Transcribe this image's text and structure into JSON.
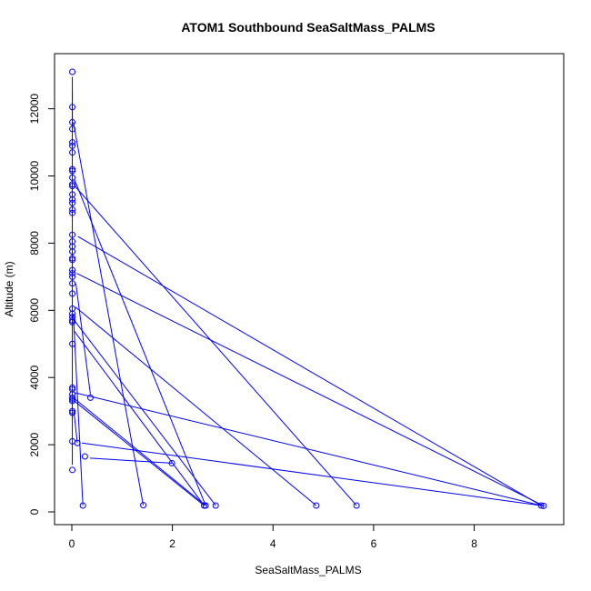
{
  "chart_data": {
    "type": "line",
    "title": "ATOM1 Southbound SeaSaltMass_PALMS",
    "xlabel": "SeaSaltMass_PALMS",
    "ylabel": "Altitude (m)",
    "xlim": [
      0,
      9.4
    ],
    "ylim": [
      0,
      13100
    ],
    "xticks": [
      0,
      2,
      4,
      6,
      8
    ],
    "yticks": [
      0,
      2000,
      4000,
      6000,
      8000,
      10000,
      12000
    ],
    "grid": false,
    "series_color": "#0000ff",
    "series": [
      {
        "points": [
          [
            0.01,
            13100
          ],
          [
            0.01,
            12050
          ],
          [
            0.01,
            11600
          ],
          [
            0.01,
            11400
          ],
          [
            0.01,
            11000
          ],
          [
            0.01,
            10900
          ],
          [
            0.01,
            10700
          ],
          [
            0.01,
            10200
          ],
          [
            0.01,
            10150
          ],
          [
            0.01,
            9950
          ],
          [
            0.01,
            9750
          ],
          [
            0.01,
            9700
          ],
          [
            0.01,
            9450
          ],
          [
            0.01,
            9300
          ],
          [
            0.01,
            9200
          ],
          [
            0.01,
            9000
          ],
          [
            0.01,
            8900
          ],
          [
            0.01,
            8250
          ],
          [
            0.01,
            8050
          ],
          [
            0.01,
            7900
          ],
          [
            0.01,
            7750
          ],
          [
            0.01,
            7550
          ],
          [
            0.01,
            7500
          ],
          [
            0.01,
            7200
          ],
          [
            0.01,
            7100
          ],
          [
            0.01,
            7000
          ],
          [
            0.01,
            6800
          ],
          [
            0.01,
            6500
          ],
          [
            0.01,
            6050
          ],
          [
            0.01,
            5900
          ],
          [
            0.01,
            5800
          ],
          [
            0.01,
            5700
          ],
          [
            0.01,
            5650
          ],
          [
            0.01,
            5000
          ],
          [
            0.01,
            3700
          ],
          [
            0.01,
            3650
          ],
          [
            0.01,
            3500
          ],
          [
            0.01,
            3400
          ],
          [
            0.01,
            3350
          ],
          [
            0.01,
            3300
          ],
          [
            0.01,
            3000
          ],
          [
            0.01,
            2950
          ],
          [
            0.01,
            2100
          ],
          [
            0.01,
            1250
          ],
          [
            0.11,
            2050
          ],
          [
            0.26,
            1650
          ],
          [
            0.22,
            190
          ],
          [
            0.37,
            3400
          ],
          [
            1.42,
            200
          ],
          [
            1.99,
            1450
          ],
          [
            2.63,
            190
          ],
          [
            2.66,
            190
          ],
          [
            2.86,
            190
          ],
          [
            4.86,
            190
          ],
          [
            5.66,
            190
          ],
          [
            9.33,
            190
          ],
          [
            9.38,
            180
          ]
        ]
      }
    ],
    "line_segments": [
      [
        [
          0.01,
          12950
        ],
        [
          0.01,
          11400
        ]
      ],
      [
        [
          0.03,
          11600
        ],
        [
          1.42,
          200
        ]
      ],
      [
        [
          0.05,
          9900
        ],
        [
          2.66,
          190
        ]
      ],
      [
        [
          0.06,
          9700
        ],
        [
          5.66,
          190
        ]
      ],
      [
        [
          0.12,
          8200
        ],
        [
          9.33,
          190
        ]
      ],
      [
        [
          0.1,
          7100
        ],
        [
          9.38,
          180
        ]
      ],
      [
        [
          0.08,
          6800
        ],
        [
          0.37,
          3500
        ]
      ],
      [
        [
          0.07,
          6100
        ],
        [
          4.86,
          190
        ]
      ],
      [
        [
          0.05,
          5700
        ],
        [
          2.86,
          190
        ]
      ],
      [
        [
          0.04,
          5400
        ],
        [
          2.63,
          190
        ]
      ],
      [
        [
          0.06,
          3550
        ],
        [
          9.33,
          190
        ]
      ],
      [
        [
          0.05,
          3300
        ],
        [
          2.63,
          190
        ]
      ],
      [
        [
          0.04,
          3000
        ],
        [
          0.11,
          2050
        ]
      ],
      [
        [
          0.22,
          190
        ],
        [
          0.03,
          5900
        ]
      ],
      [
        [
          0.2,
          2050
        ],
        [
          9.38,
          180
        ]
      ],
      [
        [
          0.36,
          1600
        ],
        [
          1.99,
          1450
        ]
      ],
      [
        [
          0.03,
          3400
        ],
        [
          2.66,
          190
        ]
      ],
      [
        [
          0.01,
          1400
        ],
        [
          0.01,
          12500
        ]
      ]
    ]
  }
}
